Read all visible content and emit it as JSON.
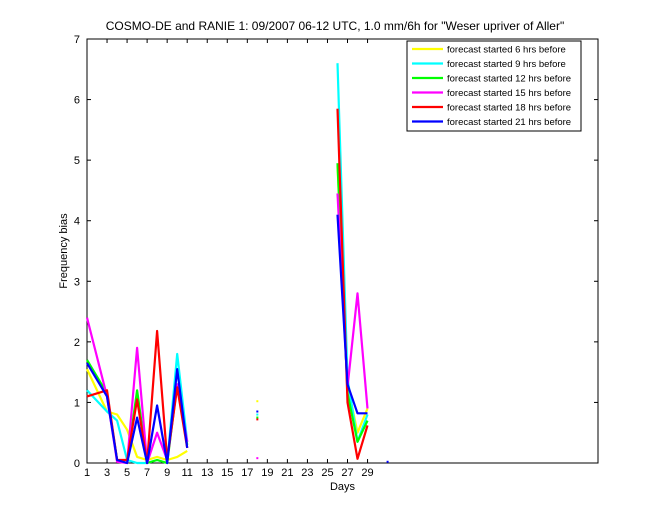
{
  "chart_data": {
    "type": "line",
    "title": "COSMO-DE and RANIE 1: 09/2007 06-12 UTC, 1.0 mm/6h for \"Weser upriver of Aller\"",
    "xlabel": "Days",
    "ylabel": "Frequency bias",
    "xlim": [
      1,
      52
    ],
    "ylim": [
      0,
      7
    ],
    "xticks": [
      1,
      3,
      5,
      7,
      9,
      11,
      13,
      15,
      17,
      19,
      21,
      23,
      25,
      27,
      29
    ],
    "yticks": [
      0,
      1,
      2,
      3,
      4,
      5,
      6,
      7
    ],
    "legend_position": "top-right",
    "series": [
      {
        "name": "forecast started 6 hrs before",
        "color": "#ffff00",
        "values": [
          [
            1,
            1.55
          ],
          [
            3,
            0.85
          ],
          [
            4,
            0.8
          ],
          [
            5,
            0.55
          ],
          [
            6,
            0.1
          ],
          [
            7,
            0.05
          ],
          [
            8,
            0.1
          ],
          [
            9,
            0.05
          ],
          [
            10,
            0.1
          ],
          [
            11,
            0.2
          ],
          null,
          [
            18,
            1.02
          ],
          null,
          [
            26,
            4.9
          ],
          [
            27,
            1.3
          ],
          [
            28,
            0.5
          ],
          [
            29,
            0.9
          ]
        ]
      },
      {
        "name": "forecast started 9 hrs before",
        "color": "#00ffff",
        "values": [
          [
            1,
            1.2
          ],
          [
            3,
            0.85
          ],
          [
            4,
            0.7
          ],
          [
            5,
            0.05
          ],
          [
            6,
            0.0
          ],
          [
            7,
            0.0
          ],
          [
            8,
            0.05
          ],
          [
            9,
            0.0
          ],
          [
            10,
            1.8
          ],
          [
            11,
            0.35
          ],
          null,
          [
            18,
            0.8
          ],
          null,
          [
            26,
            6.6
          ],
          [
            27,
            1.4
          ],
          [
            28,
            0.35
          ],
          [
            29,
            0.8
          ]
        ]
      },
      {
        "name": "forecast started 12 hrs before",
        "color": "#00ff00",
        "values": [
          [
            1,
            1.7
          ],
          [
            3,
            1.15
          ],
          [
            4,
            0.05
          ],
          [
            5,
            0.0
          ],
          [
            6,
            1.2
          ],
          [
            7,
            0.0
          ],
          [
            8,
            0.05
          ],
          [
            9,
            0.0
          ],
          [
            10,
            1.3
          ],
          [
            11,
            0.3
          ],
          null,
          [
            18,
            0.75
          ],
          null,
          [
            26,
            4.95
          ],
          [
            27,
            1.15
          ],
          [
            28,
            0.35
          ],
          [
            29,
            0.7
          ]
        ]
      },
      {
        "name": "forecast started 15 hrs before",
        "color": "#ff00ff",
        "values": [
          [
            1,
            2.4
          ],
          [
            3,
            1.1
          ],
          [
            4,
            0.02
          ],
          [
            5,
            0.0
          ],
          [
            6,
            1.9
          ],
          [
            7,
            0.0
          ],
          [
            8,
            0.5
          ],
          [
            9,
            0.05
          ],
          [
            10,
            1.3
          ],
          [
            11,
            0.35
          ],
          null,
          [
            18,
            0.08
          ],
          null,
          [
            26,
            4.45
          ],
          [
            27,
            1.25
          ],
          [
            28,
            2.8
          ],
          [
            29,
            0.9
          ]
        ]
      },
      {
        "name": "forecast started 18 hrs before",
        "color": "#ff0000",
        "values": [
          [
            1,
            1.1
          ],
          [
            3,
            1.2
          ],
          [
            4,
            0.05
          ],
          [
            5,
            0.05
          ],
          [
            6,
            1.05
          ],
          [
            7,
            0.0
          ],
          [
            8,
            2.18
          ],
          [
            9,
            0.05
          ],
          [
            10,
            1.25
          ],
          [
            11,
            0.25
          ],
          null,
          [
            18,
            0.72
          ],
          null,
          [
            26,
            5.85
          ],
          [
            27,
            1.0
          ],
          [
            28,
            0.07
          ],
          [
            29,
            0.62
          ]
        ]
      },
      {
        "name": "forecast started 21 hrs before",
        "color": "#0000ff",
        "values": [
          [
            1,
            1.65
          ],
          [
            3,
            1.1
          ],
          [
            4,
            0.05
          ],
          [
            5,
            0.0
          ],
          [
            6,
            0.75
          ],
          [
            7,
            0.0
          ],
          [
            8,
            0.95
          ],
          [
            9,
            0.0
          ],
          [
            10,
            1.55
          ],
          [
            11,
            0.25
          ],
          null,
          [
            18,
            0.85
          ],
          null,
          [
            26,
            4.1
          ],
          [
            27,
            1.3
          ],
          [
            28,
            0.82
          ],
          [
            29,
            0.82
          ],
          null,
          [
            31,
            0.02
          ]
        ]
      }
    ]
  }
}
